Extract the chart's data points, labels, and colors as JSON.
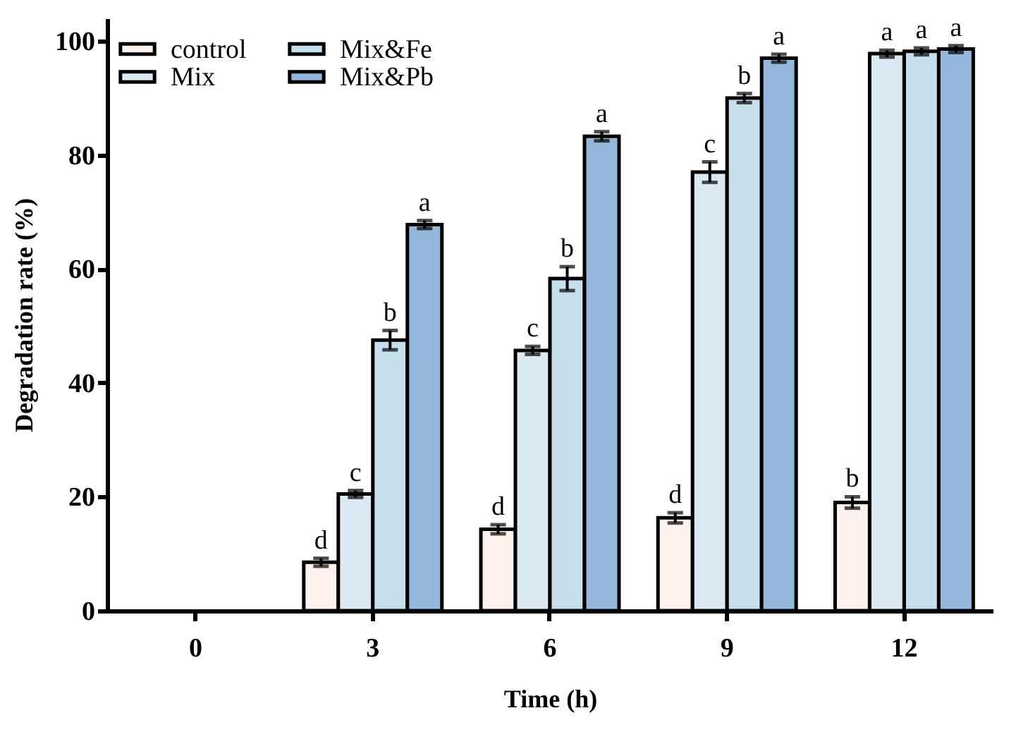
{
  "chart_data": {
    "type": "bar",
    "xlabel": "Time (h)",
    "ylabel": "Degradation rate (%)",
    "categories": [
      "0",
      "3",
      "6",
      "9",
      "12"
    ],
    "series": [
      {
        "name": "control",
        "color": "#fdf3ec",
        "values": [
          null,
          8.5,
          14.3,
          16.3,
          19
        ],
        "errors": [
          null,
          0.7,
          0.8,
          0.9,
          1.0
        ],
        "value_labels": [
          null,
          "d",
          "d",
          "d",
          "b"
        ]
      },
      {
        "name": "Mix",
        "color": "#dbeaf2",
        "values": [
          null,
          20.5,
          45.7,
          77,
          97.8
        ],
        "errors": [
          null,
          0.6,
          0.7,
          1.8,
          0.6
        ],
        "value_labels": [
          null,
          "c",
          "c",
          "c",
          "a"
        ]
      },
      {
        "name": "Mix&Fe",
        "color": "#c5e0ec",
        "values": [
          null,
          47.5,
          58.3,
          90,
          98.2
        ],
        "errors": [
          null,
          1.7,
          2.1,
          0.8,
          0.6
        ],
        "value_labels": [
          null,
          "b",
          "b",
          "b",
          "a"
        ]
      },
      {
        "name": "Mix&Pb",
        "color": "#93b8dc",
        "values": [
          null,
          67.8,
          83.3,
          97,
          98.6
        ],
        "errors": [
          null,
          0.7,
          0.8,
          0.7,
          0.6
        ],
        "value_labels": [
          null,
          "a",
          "a",
          "a",
          "a"
        ]
      }
    ],
    "ylim": [
      0,
      104
    ],
    "yticks": [
      0,
      20,
      40,
      60,
      80,
      100
    ],
    "grid": false,
    "legend": "top left"
  }
}
